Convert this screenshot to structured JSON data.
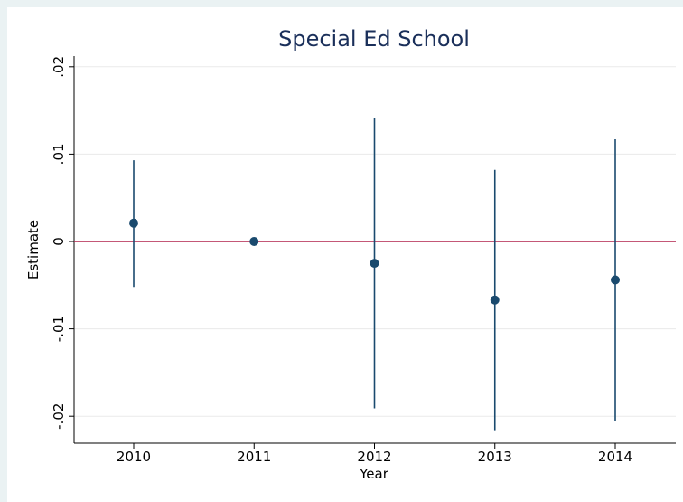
{
  "chart_data": {
    "type": "scatter",
    "title": "Special Ed School",
    "xlabel": "Year",
    "ylabel": "Estimate",
    "categories": [
      "2010",
      "2011",
      "2012",
      "2013",
      "2014"
    ],
    "yticks": [
      {
        "value": 0.02,
        "label": ".02"
      },
      {
        "value": 0.01,
        "label": ".01"
      },
      {
        "value": 0,
        "label": "0"
      },
      {
        "value": -0.01,
        "label": "-.01"
      },
      {
        "value": -0.02,
        "label": "-.02"
      }
    ],
    "ylim": [
      -0.022,
      0.0215
    ],
    "points": [
      {
        "x": "2010",
        "estimate": 0.0021,
        "ci_low": -0.0052,
        "ci_high": 0.0093
      },
      {
        "x": "2011",
        "estimate": 0.0,
        "ci_low": 0.0,
        "ci_high": 0.0
      },
      {
        "x": "2012",
        "estimate": -0.0025,
        "ci_low": -0.0191,
        "ci_high": 0.0141
      },
      {
        "x": "2013",
        "estimate": -0.0067,
        "ci_low": -0.0216,
        "ci_high": 0.0082
      },
      {
        "x": "2014",
        "estimate": -0.0044,
        "ci_low": -0.0205,
        "ci_high": 0.0117
      }
    ],
    "reference_line": {
      "y": 0,
      "color": "#b0204a"
    },
    "marker_color": "#1a4a6e",
    "grid": true,
    "legend": "none"
  }
}
